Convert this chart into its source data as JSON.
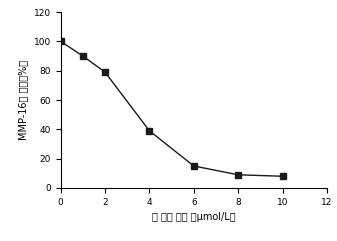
{
  "x": [
    0,
    1,
    2,
    4,
    6,
    8,
    10
  ],
  "y": [
    100,
    90,
    79,
    39,
    15,
    9,
    8
  ],
  "xlim": [
    0,
    12
  ],
  "ylim": [
    0,
    120
  ],
  "xticks": [
    0,
    2,
    4,
    6,
    8,
    10,
    12
  ],
  "yticks": [
    0,
    20,
    40,
    60,
    80,
    100,
    120
  ],
  "xlabel": "单 体的 浓度 （μmol/L）",
  "ylabel": "MMP-16的 活力（%）",
  "line_color": "#1a1a1a",
  "marker": "s",
  "marker_color": "#1a1a1a",
  "marker_size": 4,
  "line_width": 1.0,
  "background_color": "#ffffff",
  "tick_fontsize": 6.5,
  "label_fontsize": 7
}
